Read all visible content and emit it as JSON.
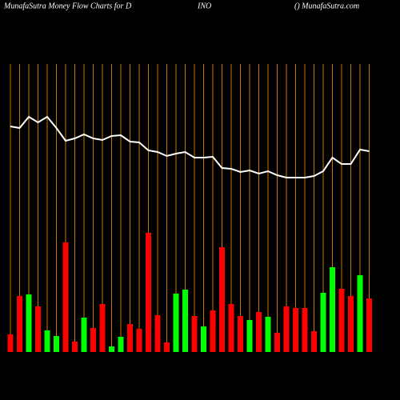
{
  "chart_data": {
    "type": "bar-line",
    "title": "MunafaSutra  Money Flow  Charts for D",
    "title_middle": "INO",
    "title_right": "() MunafaSutra.com",
    "categories": [
      null,
      null,
      null,
      null,
      null,
      null,
      null,
      null,
      null,
      null,
      null,
      null,
      null,
      null,
      null,
      null,
      null,
      null,
      null,
      null,
      null,
      null,
      null,
      null,
      null,
      null,
      null,
      null,
      null,
      null,
      null,
      null,
      null,
      null,
      null,
      null,
      null,
      null,
      null,
      null
    ],
    "ylim": [
      0,
      360
    ],
    "grid_color": "#c87800",
    "series": [
      {
        "type": "bar",
        "values": [
          22,
          70,
          72,
          57,
          27,
          20,
          137,
          13,
          43,
          30,
          60,
          7,
          19,
          35,
          29,
          149,
          46,
          12,
          73,
          78,
          45,
          32,
          52,
          131,
          60,
          45,
          40,
          50,
          44,
          24,
          57,
          55,
          55,
          26,
          74,
          106,
          79,
          70,
          96,
          67
        ],
        "colors": [
          "red",
          "red",
          "lime",
          "red",
          "lime",
          "lime",
          "red",
          "red",
          "lime",
          "red",
          "red",
          "lime",
          "lime",
          "red",
          "red",
          "red",
          "red",
          "red",
          "lime",
          "lime",
          "red",
          "lime",
          "red",
          "red",
          "red",
          "red",
          "lime",
          "red",
          "lime",
          "red",
          "red",
          "red",
          "red",
          "red",
          "lime",
          "lime",
          "red",
          "red",
          "lime",
          "red"
        ]
      },
      {
        "type": "line",
        "color": "white",
        "values": [
          282,
          280,
          294,
          287,
          294,
          280,
          264,
          267,
          272,
          267,
          265,
          270,
          271,
          263,
          262,
          252,
          250,
          245,
          248,
          250,
          243,
          243,
          244,
          230,
          229,
          225,
          227,
          223,
          226,
          221,
          218,
          218,
          218,
          220,
          226,
          243,
          235,
          235,
          253,
          251
        ]
      }
    ]
  }
}
